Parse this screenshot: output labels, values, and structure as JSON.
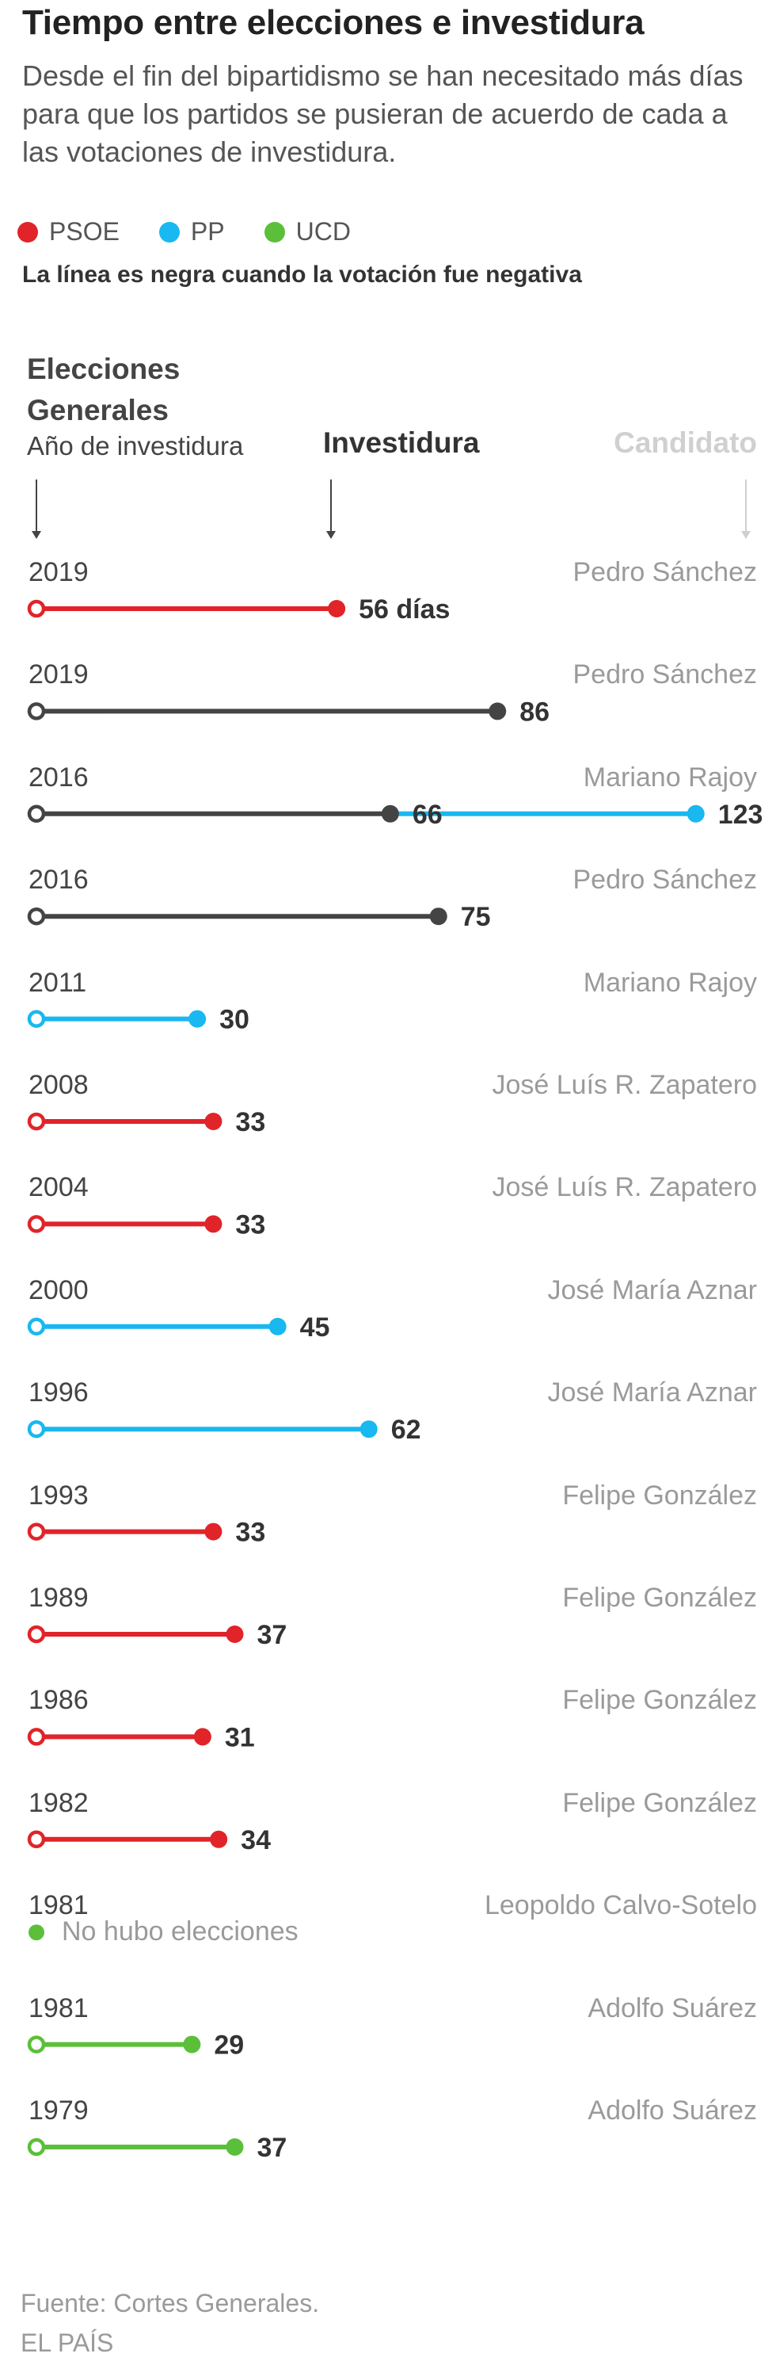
{
  "title": "Tiempo entre elecciones e investidura",
  "subtitle": "Desde el fin del bipartidismo se han necesitado más días para que los partidos se pusieran de acuerdo de cada a las votaciones de investidura.",
  "legend": [
    {
      "label": "PSOE",
      "color": "#e0242a"
    },
    {
      "label": "PP",
      "color": "#19b8f0"
    },
    {
      "label": "UCD",
      "color": "#5bbf3a"
    }
  ],
  "note": "La línea es negra cuando la votación fue negativa",
  "column_headers": {
    "elecciones": "Elecciones Generales",
    "year": "Año de investidura",
    "investidura": "Investidura",
    "candidato": "Candidato"
  },
  "colors": {
    "PSOE": "#e0242a",
    "PP": "#19b8f0",
    "UCD": "#5bbf3a",
    "negative": "#444444",
    "arrow": "#444444",
    "arrow_light": "#d0d0d0"
  },
  "chart_data": {
    "type": "bar",
    "orientation": "horizontal",
    "unit": "días",
    "rows": [
      {
        "year": "2019",
        "candidate": "Pedro Sánchez",
        "party": "PSOE",
        "negative": false,
        "segments": [
          56
        ],
        "labels": [
          "56 días"
        ]
      },
      {
        "year": "2019",
        "candidate": "Pedro Sánchez",
        "party": "PSOE",
        "negative": true,
        "segments": [
          86
        ],
        "labels": [
          "86"
        ]
      },
      {
        "year": "2016",
        "candidate": "Mariano Rajoy",
        "party": "PP",
        "negative": true,
        "segments": [
          66,
          123
        ],
        "labels": [
          "66",
          "123"
        ]
      },
      {
        "year": "2016",
        "candidate": "Pedro Sánchez",
        "party": "PSOE",
        "negative": true,
        "segments": [
          75
        ],
        "labels": [
          "75"
        ]
      },
      {
        "year": "2011",
        "candidate": "Mariano Rajoy",
        "party": "PP",
        "negative": false,
        "segments": [
          30
        ],
        "labels": [
          "30"
        ]
      },
      {
        "year": "2008",
        "candidate": "José Luís R. Zapatero",
        "party": "PSOE",
        "negative": false,
        "segments": [
          33
        ],
        "labels": [
          "33"
        ]
      },
      {
        "year": "2004",
        "candidate": "José Luís R. Zapatero",
        "party": "PSOE",
        "negative": false,
        "segments": [
          33
        ],
        "labels": [
          "33"
        ]
      },
      {
        "year": "2000",
        "candidate": "José María Aznar",
        "party": "PP",
        "negative": false,
        "segments": [
          45
        ],
        "labels": [
          "45"
        ]
      },
      {
        "year": "1996",
        "candidate": "José María Aznar",
        "party": "PP",
        "negative": false,
        "segments": [
          62
        ],
        "labels": [
          "62"
        ]
      },
      {
        "year": "1993",
        "candidate": "Felipe González",
        "party": "PSOE",
        "negative": false,
        "segments": [
          33
        ],
        "labels": [
          "33"
        ]
      },
      {
        "year": "1989",
        "candidate": "Felipe González",
        "party": "PSOE",
        "negative": false,
        "segments": [
          37
        ],
        "labels": [
          "37"
        ]
      },
      {
        "year": "1986",
        "candidate": "Felipe González",
        "party": "PSOE",
        "negative": false,
        "segments": [
          31
        ],
        "labels": [
          "31"
        ]
      },
      {
        "year": "1982",
        "candidate": "Felipe González",
        "party": "PSOE",
        "negative": false,
        "segments": [
          34
        ],
        "labels": [
          "34"
        ]
      },
      {
        "year": "1981",
        "candidate": "Leopoldo Calvo-Sotelo",
        "party": "UCD",
        "negative": false,
        "segments": [],
        "labels": [],
        "no_election_text": "No hubo elecciones"
      },
      {
        "year": "1981",
        "candidate": "Adolfo Suárez",
        "party": "UCD",
        "negative": false,
        "segments": [
          29
        ],
        "labels": [
          "29"
        ]
      },
      {
        "year": "1979",
        "candidate": "Adolfo Suárez",
        "party": "UCD",
        "negative": false,
        "segments": [
          37
        ],
        "labels": [
          "37"
        ]
      }
    ]
  },
  "source": "Fuente: Cortes Generales.",
  "brand": "EL PAÍS"
}
